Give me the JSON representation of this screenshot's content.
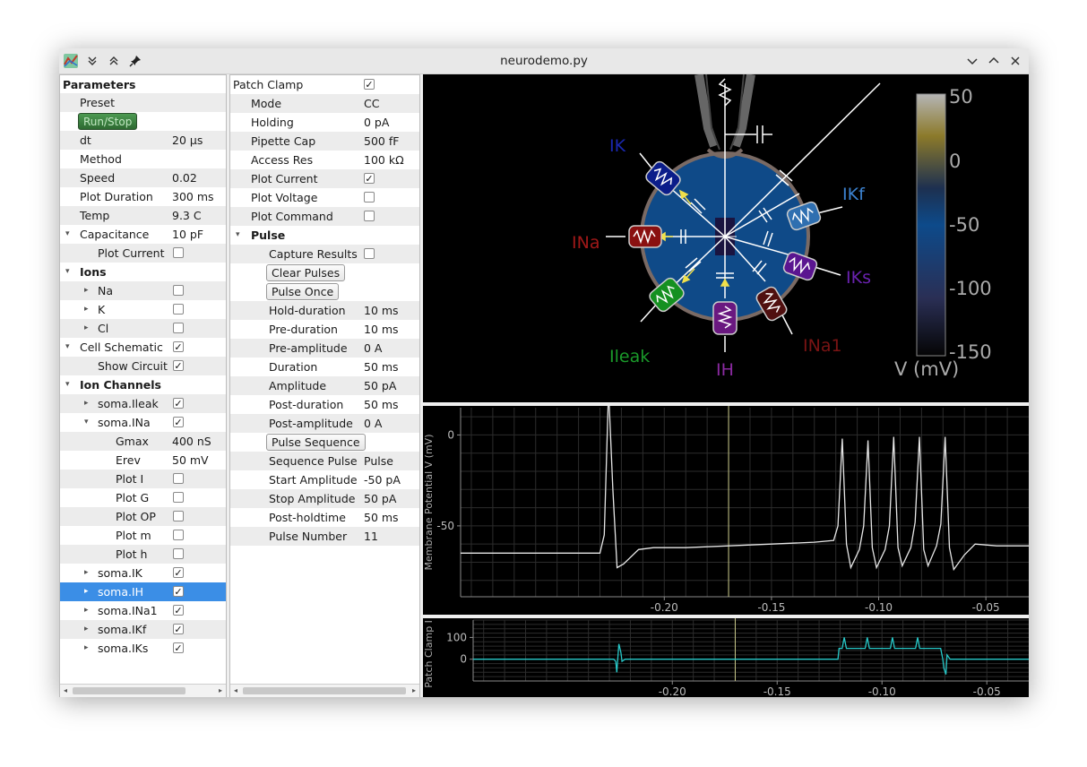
{
  "window": {
    "title": "neurodemo.py"
  },
  "params": {
    "header": "Parameters",
    "rows": [
      {
        "label": "Preset",
        "value": ""
      },
      {
        "label": "",
        "button": "Run/Stop"
      },
      {
        "label": "dt",
        "value": "20 µs"
      },
      {
        "label": "Method",
        "value": ""
      },
      {
        "label": "Speed",
        "value": "0.02"
      },
      {
        "label": "Plot Duration",
        "value": "300 ms"
      },
      {
        "label": "Temp",
        "value": "9.3 C"
      },
      {
        "label": "Capacitance",
        "value": "10 pF"
      },
      {
        "label": "Plot Current",
        "value": ""
      },
      {
        "label": "Ions",
        "value": ""
      },
      {
        "label": "Na",
        "value": ""
      },
      {
        "label": "K",
        "value": ""
      },
      {
        "label": "Cl",
        "value": ""
      },
      {
        "label": "Cell Schematic",
        "value": ""
      },
      {
        "label": "Show Circuit",
        "value": ""
      },
      {
        "label": "Ion Channels",
        "value": ""
      },
      {
        "label": "soma.Ileak",
        "value": ""
      },
      {
        "label": "soma.INa",
        "value": ""
      },
      {
        "label": "Gmax",
        "value": "400 nS"
      },
      {
        "label": "Erev",
        "value": "50 mV"
      },
      {
        "label": "Plot I",
        "value": ""
      },
      {
        "label": "Plot G",
        "value": ""
      },
      {
        "label": "Plot OP",
        "value": ""
      },
      {
        "label": "Plot m",
        "value": ""
      },
      {
        "label": "Plot h",
        "value": ""
      },
      {
        "label": "soma.IK",
        "value": ""
      },
      {
        "label": "soma.IH",
        "value": ""
      },
      {
        "label": "soma.INa1",
        "value": ""
      },
      {
        "label": "soma.IKf",
        "value": ""
      },
      {
        "label": "soma.IKs",
        "value": ""
      }
    ]
  },
  "clamp": {
    "rows": [
      {
        "label": "Patch Clamp",
        "value": ""
      },
      {
        "label": "Mode",
        "value": "CC"
      },
      {
        "label": "Holding",
        "value": "0 pA"
      },
      {
        "label": "Pipette Cap",
        "value": "500 fF"
      },
      {
        "label": "Access Res",
        "value": "100 kΩ"
      },
      {
        "label": "Plot Current",
        "value": ""
      },
      {
        "label": "Plot Voltage",
        "value": ""
      },
      {
        "label": "Plot Command",
        "value": ""
      },
      {
        "label": "Pulse",
        "value": ""
      },
      {
        "label": "Capture Results",
        "value": ""
      },
      {
        "label": "",
        "button": "Clear Pulses"
      },
      {
        "label": "",
        "button": "Pulse Once"
      },
      {
        "label": "Hold-duration",
        "value": "10 ms"
      },
      {
        "label": "Pre-duration",
        "value": "10 ms"
      },
      {
        "label": "Pre-amplitude",
        "value": "0 A"
      },
      {
        "label": "Duration",
        "value": "50 ms"
      },
      {
        "label": "Amplitude",
        "value": "50 pA"
      },
      {
        "label": "Post-duration",
        "value": "50 ms"
      },
      {
        "label": "Post-amplitude",
        "value": "0 A"
      },
      {
        "label": "",
        "button": "Pulse Sequence"
      },
      {
        "label": "Sequence Pulse",
        "value": "Pulse"
      },
      {
        "label": "Start Amplitude",
        "value": "-50 pA"
      },
      {
        "label": "Stop Amplitude",
        "value": "50 pA"
      },
      {
        "label": "Post-holdtime",
        "value": "50 ms"
      },
      {
        "label": "Pulse Number",
        "value": "11"
      }
    ]
  },
  "schematic": {
    "channels": {
      "IK": "IK",
      "INa": "INa",
      "Ileak": "Ileak",
      "IH": "IH",
      "INa1": "INa1",
      "IKs": "IKs",
      "IKf": "IKf"
    },
    "colorbar": {
      "ticks": [
        "50",
        "0",
        "-50",
        "-100",
        "-150"
      ],
      "label": "V (mV)"
    }
  },
  "colors": {
    "accent": "#3b8ee6",
    "run_button": "#3d7f42",
    "trace_voltage": "#e6e6e6",
    "trace_current": "#27c9c9",
    "cursor": "#c9c98a"
  },
  "chart_data": [
    {
      "type": "line",
      "title": "",
      "xlabel": "",
      "ylabel": "Membrane Potential V (mV)",
      "xlim": [
        -0.295,
        -0.03
      ],
      "ylim": [
        -89,
        15
      ],
      "x_ticks": [
        "-0.20",
        "-0.15",
        "-0.10",
        "-0.05"
      ],
      "y_ticks": [
        "0",
        "-50"
      ],
      "grid": true,
      "cursor_x": -0.17,
      "series": [
        {
          "x": [
            -0.295,
            -0.23,
            -0.228,
            -0.226,
            -0.224,
            -0.222,
            -0.219,
            -0.212,
            -0.205,
            -0.19,
            -0.17,
            -0.15,
            -0.13,
            -0.121,
            -0.119,
            -0.117,
            -0.115,
            -0.113,
            -0.109,
            -0.107,
            -0.105,
            -0.103,
            -0.101,
            -0.097,
            -0.095,
            -0.093,
            -0.091,
            -0.089,
            -0.085,
            -0.083,
            -0.081,
            -0.079,
            -0.077,
            -0.073,
            -0.071,
            -0.069,
            -0.067,
            -0.065,
            -0.06,
            -0.055,
            -0.045,
            -0.03
          ],
          "y": [
            -65,
            -65,
            -55,
            25,
            -30,
            -73,
            -71,
            -63,
            -62,
            -62,
            -61,
            -60,
            -59,
            -58,
            -50,
            -2,
            -60,
            -73,
            -63,
            -50,
            -3,
            -62,
            -73,
            -63,
            -50,
            -1,
            -62,
            -72,
            -62,
            -48,
            -1,
            -63,
            -72,
            -61,
            -49,
            -1,
            -62,
            -74,
            -66,
            -60,
            -61,
            -61
          ]
        }
      ]
    },
    {
      "type": "line",
      "title": "",
      "xlabel": "",
      "ylabel": "Patch Clamp I (",
      "xlim": [
        -0.295,
        -0.03
      ],
      "ylim": [
        -100,
        180
      ],
      "x_ticks": [
        "-0.20",
        "-0.15",
        "-0.10",
        "-0.05"
      ],
      "y_ticks": [
        "100",
        "0"
      ],
      "grid": true,
      "cursor_x": -0.17,
      "series": [
        {
          "x": [
            -0.295,
            -0.228,
            -0.227,
            -0.2265,
            -0.2255,
            -0.2245,
            -0.224,
            -0.2225,
            -0.121,
            -0.1205,
            -0.119,
            -0.118,
            -0.117,
            -0.115,
            -0.108,
            -0.107,
            -0.106,
            -0.104,
            -0.096,
            -0.095,
            -0.094,
            -0.092,
            -0.084,
            -0.083,
            -0.082,
            -0.08,
            -0.072,
            -0.071,
            -0.0705,
            -0.0695,
            -0.069,
            -0.0675,
            -0.03
          ],
          "y": [
            0,
            0,
            -10,
            -60,
            70,
            30,
            -10,
            0,
            0,
            50,
            50,
            100,
            50,
            50,
            50,
            100,
            50,
            50,
            50,
            100,
            50,
            50,
            50,
            100,
            50,
            50,
            50,
            0,
            -40,
            -70,
            20,
            0,
            0
          ]
        }
      ]
    }
  ]
}
